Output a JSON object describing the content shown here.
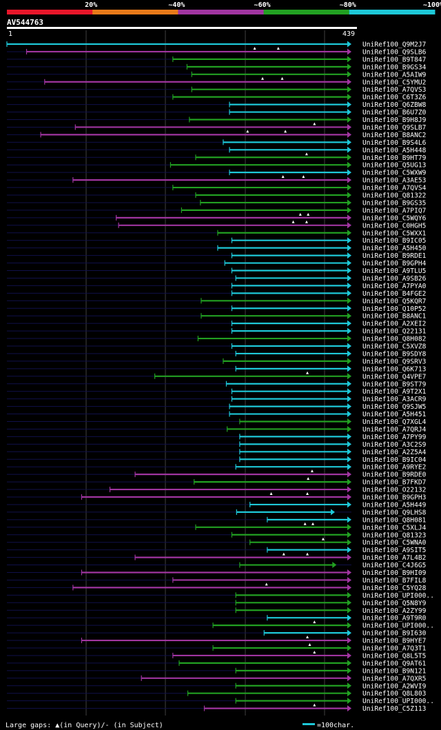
{
  "chart_data": {
    "type": "alignment-overview",
    "query_id": "AV544763",
    "query_length": 439,
    "axis_start_label": "1",
    "axis_end_label": "439",
    "identity_legend": [
      {
        "label": "20%",
        "color": "#e8162a"
      },
      {
        "label": "~40%",
        "color": "#e87a1a"
      },
      {
        "label": "~60%",
        "color": "#a035a0"
      },
      {
        "label": "~80%",
        "color": "#22a022"
      },
      {
        "label": "~100%",
        "color": "#1ec8d8"
      }
    ],
    "footer_left": "Large gaps: ▲(in Query)/- (in Subject)",
    "footer_right": "=100char.",
    "hits": [
      {
        "name": "UniRef100_Q9M2J7",
        "start": 1,
        "end": 439,
        "cls": 4,
        "marks": [],
        "arrow": true
      },
      {
        "name": "UniRef100_Q9SLB6",
        "start": 26,
        "end": 439,
        "cls": 2,
        "marks": [
          316,
          346
        ],
        "arrow": true
      },
      {
        "name": "UniRef100_B9T847",
        "start": 212,
        "end": 439,
        "cls": 3,
        "marks": [],
        "arrow": true
      },
      {
        "name": "UniRef100_B9GS34",
        "start": 230,
        "end": 439,
        "cls": 3,
        "marks": [],
        "arrow": true
      },
      {
        "name": "UniRef100_A5AIW9",
        "start": 236,
        "end": 439,
        "cls": 3,
        "marks": [],
        "arrow": true
      },
      {
        "name": "UniRef100_C5YMU2",
        "start": 49,
        "end": 439,
        "cls": 2,
        "marks": [
          326,
          351
        ],
        "arrow": true
      },
      {
        "name": "UniRef100_A7QVS3",
        "start": 236,
        "end": 439,
        "cls": 3,
        "marks": [],
        "arrow": true
      },
      {
        "name": "UniRef100_C6T3Z6",
        "start": 212,
        "end": 439,
        "cls": 3,
        "marks": [],
        "arrow": true
      },
      {
        "name": "UniRef100_Q6ZBW8",
        "start": 284,
        "end": 439,
        "cls": 4,
        "marks": [],
        "arrow": true
      },
      {
        "name": "UniRef100_B6U7Z0",
        "start": 284,
        "end": 439,
        "cls": 4,
        "marks": [],
        "arrow": true
      },
      {
        "name": "UniRef100_B9H8J9",
        "start": 233,
        "end": 439,
        "cls": 3,
        "marks": [],
        "arrow": true
      },
      {
        "name": "UniRef100_Q9SLB7",
        "start": 88,
        "end": 439,
        "cls": 2,
        "marks": [
          392
        ],
        "arrow": true
      },
      {
        "name": "UniRef100_B8ANC2",
        "start": 44,
        "end": 439,
        "cls": 2,
        "marks": [
          307,
          355
        ],
        "arrow": true
      },
      {
        "name": "UniRef100_B9S4L6",
        "start": 276,
        "end": 439,
        "cls": 4,
        "marks": [],
        "arrow": true
      },
      {
        "name": "UniRef100_A5H448",
        "start": 284,
        "end": 439,
        "cls": 4,
        "marks": [],
        "arrow": true
      },
      {
        "name": "UniRef100_B9HT79",
        "start": 241,
        "end": 439,
        "cls": 3,
        "marks": [
          382
        ],
        "arrow": true
      },
      {
        "name": "UniRef100_Q5UG13",
        "start": 209,
        "end": 439,
        "cls": 3,
        "marks": [],
        "arrow": true
      },
      {
        "name": "UniRef100_C5WXW9",
        "start": 284,
        "end": 439,
        "cls": 4,
        "marks": [],
        "arrow": true
      },
      {
        "name": "UniRef100_A3AE53",
        "start": 85,
        "end": 439,
        "cls": 2,
        "marks": [
          352,
          378
        ],
        "arrow": true
      },
      {
        "name": "UniRef100_A7QVS4",
        "start": 212,
        "end": 439,
        "cls": 3,
        "marks": [],
        "arrow": true
      },
      {
        "name": "UniRef100_Q81322",
        "start": 241,
        "end": 439,
        "cls": 3,
        "marks": [],
        "arrow": true
      },
      {
        "name": "UniRef100_B9GS35",
        "start": 247,
        "end": 439,
        "cls": 3,
        "marks": [],
        "arrow": true
      },
      {
        "name": "UniRef100_A7PIQ7",
        "start": 223,
        "end": 439,
        "cls": 3,
        "marks": [],
        "arrow": true
      },
      {
        "name": "UniRef100_C5WQY6",
        "start": 140,
        "end": 439,
        "cls": 2,
        "marks": [
          374,
          384
        ],
        "arrow": true
      },
      {
        "name": "UniRef100_C0HGH5",
        "start": 143,
        "end": 439,
        "cls": 2,
        "marks": [
          365,
          382
        ],
        "arrow": true
      },
      {
        "name": "UniRef100_C5WXX1",
        "start": 269,
        "end": 439,
        "cls": 3,
        "marks": [],
        "arrow": true
      },
      {
        "name": "UniRef100_B9IC05",
        "start": 287,
        "end": 439,
        "cls": 4,
        "marks": [],
        "arrow": true
      },
      {
        "name": "UniRef100_A5H450",
        "start": 269,
        "end": 439,
        "cls": 4,
        "marks": [],
        "arrow": true
      },
      {
        "name": "UniRef100_B9RDE1",
        "start": 287,
        "end": 439,
        "cls": 4,
        "marks": [],
        "arrow": true
      },
      {
        "name": "UniRef100_B9GPH4",
        "start": 278,
        "end": 439,
        "cls": 4,
        "marks": [],
        "arrow": true
      },
      {
        "name": "UniRef100_A9TLU5",
        "start": 287,
        "end": 439,
        "cls": 4,
        "marks": [],
        "arrow": true
      },
      {
        "name": "UniRef100_A9SB26",
        "start": 292,
        "end": 439,
        "cls": 4,
        "marks": [],
        "arrow": true
      },
      {
        "name": "UniRef100_A7PYA0",
        "start": 287,
        "end": 439,
        "cls": 4,
        "marks": [],
        "arrow": true
      },
      {
        "name": "UniRef100_B4FGE2",
        "start": 287,
        "end": 439,
        "cls": 4,
        "marks": [],
        "arrow": true
      },
      {
        "name": "UniRef100_Q5KQR7",
        "start": 248,
        "end": 439,
        "cls": 3,
        "marks": [],
        "arrow": true
      },
      {
        "name": "UniRef100_Q10P52",
        "start": 287,
        "end": 439,
        "cls": 4,
        "marks": [],
        "arrow": true
      },
      {
        "name": "UniRef100_B8ANC1",
        "start": 248,
        "end": 439,
        "cls": 3,
        "marks": [],
        "arrow": true
      },
      {
        "name": "UniRef100_A2XEI2",
        "start": 287,
        "end": 439,
        "cls": 4,
        "marks": [],
        "arrow": true
      },
      {
        "name": "UniRef100_Q22131",
        "start": 287,
        "end": 439,
        "cls": 4,
        "marks": [],
        "arrow": true
      },
      {
        "name": "UniRef100_Q8H082",
        "start": 244,
        "end": 439,
        "cls": 3,
        "marks": [],
        "arrow": true
      },
      {
        "name": "UniRef100_C5XVZ8",
        "start": 287,
        "end": 439,
        "cls": 4,
        "marks": [],
        "arrow": true
      },
      {
        "name": "UniRef100_B9SDY8",
        "start": 292,
        "end": 439,
        "cls": 4,
        "marks": [],
        "arrow": true
      },
      {
        "name": "UniRef100_Q9SRV3",
        "start": 276,
        "end": 439,
        "cls": 3,
        "marks": [],
        "arrow": true
      },
      {
        "name": "UniRef100_Q6K713",
        "start": 292,
        "end": 439,
        "cls": 4,
        "marks": [],
        "arrow": true
      },
      {
        "name": "UniRef100_Q4VPE7",
        "start": 189,
        "end": 439,
        "cls": 3,
        "marks": [
          383
        ],
        "arrow": true
      },
      {
        "name": "UniRef100_B9ST79",
        "start": 280,
        "end": 439,
        "cls": 4,
        "marks": [],
        "arrow": true
      },
      {
        "name": "UniRef100_A9T2X1",
        "start": 287,
        "end": 439,
        "cls": 4,
        "marks": [],
        "arrow": true
      },
      {
        "name": "UniRef100_A3ACR9",
        "start": 287,
        "end": 439,
        "cls": 4,
        "marks": [],
        "arrow": true
      },
      {
        "name": "UniRef100_Q9SJW5",
        "start": 284,
        "end": 439,
        "cls": 4,
        "marks": [],
        "arrow": true
      },
      {
        "name": "UniRef100_A5H451",
        "start": 284,
        "end": 439,
        "cls": 4,
        "marks": [],
        "arrow": true
      },
      {
        "name": "UniRef100_Q7XGL4",
        "start": 297,
        "end": 439,
        "cls": 3,
        "marks": [],
        "arrow": true
      },
      {
        "name": "UniRef100_A7QRJ4",
        "start": 281,
        "end": 439,
        "cls": 3,
        "marks": [],
        "arrow": true
      },
      {
        "name": "UniRef100_A7PY99",
        "start": 297,
        "end": 439,
        "cls": 4,
        "marks": [],
        "arrow": true
      },
      {
        "name": "UniRef100_A3C2S9",
        "start": 297,
        "end": 439,
        "cls": 4,
        "marks": [],
        "arrow": true
      },
      {
        "name": "UniRef100_A2Z5A4",
        "start": 297,
        "end": 439,
        "cls": 4,
        "marks": [],
        "arrow": true
      },
      {
        "name": "UniRef100_B9IC04",
        "start": 297,
        "end": 439,
        "cls": 4,
        "marks": [],
        "arrow": true
      },
      {
        "name": "UniRef100_A9RYE2",
        "start": 292,
        "end": 439,
        "cls": 4,
        "marks": [],
        "arrow": true
      },
      {
        "name": "UniRef100_B9RDE0",
        "start": 164,
        "end": 439,
        "cls": 2,
        "marks": [
          389
        ],
        "arrow": true
      },
      {
        "name": "UniRef100_B7FKD7",
        "start": 239,
        "end": 439,
        "cls": 3,
        "marks": [
          384
        ],
        "arrow": true
      },
      {
        "name": "UniRef100_O22132",
        "start": 132,
        "end": 439,
        "cls": 2,
        "marks": [],
        "arrow": true
      },
      {
        "name": "UniRef100_B9GPH3",
        "start": 96,
        "end": 439,
        "cls": 2,
        "marks": [
          337,
          383
        ],
        "arrow": true
      },
      {
        "name": "UniRef100_A5H449",
        "start": 310,
        "end": 439,
        "cls": 4,
        "marks": [],
        "arrow": true
      },
      {
        "name": "UniRef100_Q9LHS8",
        "start": 293,
        "end": 418,
        "cls": 4,
        "marks": [],
        "arrow": true
      },
      {
        "name": "UniRef100_Q8H081",
        "start": 332,
        "end": 439,
        "cls": 4,
        "marks": [],
        "arrow": true
      },
      {
        "name": "UniRef100_C5XLJ4",
        "start": 241,
        "end": 439,
        "cls": 3,
        "marks": [
          380,
          390
        ],
        "arrow": true
      },
      {
        "name": "UniRef100_Q81323",
        "start": 287,
        "end": 439,
        "cls": 3,
        "marks": [],
        "arrow": true
      },
      {
        "name": "UniRef100_C5WNA0",
        "start": 310,
        "end": 439,
        "cls": 3,
        "marks": [
          403
        ],
        "arrow": true
      },
      {
        "name": "UniRef100_A9SIT5",
        "start": 332,
        "end": 439,
        "cls": 4,
        "marks": [],
        "arrow": true
      },
      {
        "name": "UniRef100_A7L4B2",
        "start": 164,
        "end": 439,
        "cls": 2,
        "marks": [
          353,
          383
        ],
        "arrow": true
      },
      {
        "name": "UniRef100_C4J6G5",
        "start": 297,
        "end": 420,
        "cls": 3,
        "marks": [],
        "arrow": true
      },
      {
        "name": "UniRef100_B9HI09",
        "start": 96,
        "end": 439,
        "cls": 2,
        "marks": [],
        "arrow": true
      },
      {
        "name": "UniRef100_B7FIL8",
        "start": 212,
        "end": 439,
        "cls": 2,
        "marks": [],
        "arrow": true
      },
      {
        "name": "UniRef100_C5YQ28",
        "start": 85,
        "end": 439,
        "cls": 2,
        "marks": [
          331
        ],
        "arrow": true
      },
      {
        "name": "UniRef100_UPI000..",
        "start": 292,
        "end": 439,
        "cls": 3,
        "marks": [],
        "arrow": true
      },
      {
        "name": "UniRef100_Q5N8Y9",
        "start": 292,
        "end": 439,
        "cls": 3,
        "marks": [],
        "arrow": true
      },
      {
        "name": "UniRef100_A2ZY99",
        "start": 292,
        "end": 439,
        "cls": 3,
        "marks": [],
        "arrow": true
      },
      {
        "name": "UniRef100_A9T9R0",
        "start": 332,
        "end": 439,
        "cls": 4,
        "marks": [],
        "arrow": true
      },
      {
        "name": "UniRef100_UPI000..",
        "start": 263,
        "end": 439,
        "cls": 3,
        "marks": [
          392
        ],
        "arrow": true
      },
      {
        "name": "UniRef100_B9I630",
        "start": 328,
        "end": 439,
        "cls": 4,
        "marks": [],
        "arrow": true
      },
      {
        "name": "UniRef100_B9HYE7",
        "start": 96,
        "end": 439,
        "cls": 2,
        "marks": [
          383
        ],
        "arrow": true
      },
      {
        "name": "UniRef100_A7Q3T1",
        "start": 263,
        "end": 439,
        "cls": 3,
        "marks": [
          386
        ],
        "arrow": true
      },
      {
        "name": "UniRef100_Q8L5T5",
        "start": 212,
        "end": 439,
        "cls": 2,
        "marks": [
          392
        ],
        "arrow": true
      },
      {
        "name": "UniRef100_Q9AT61",
        "start": 220,
        "end": 439,
        "cls": 3,
        "marks": [],
        "arrow": true
      },
      {
        "name": "UniRef100_B9N121",
        "start": 292,
        "end": 439,
        "cls": 3,
        "marks": [],
        "arrow": true
      },
      {
        "name": "UniRef100_A7QXR5",
        "start": 172,
        "end": 439,
        "cls": 2,
        "marks": [],
        "arrow": true
      },
      {
        "name": "UniRef100_A2WVI9",
        "start": 292,
        "end": 439,
        "cls": 3,
        "marks": [],
        "arrow": true
      },
      {
        "name": "UniRef100_Q8L803",
        "start": 231,
        "end": 439,
        "cls": 3,
        "marks": [],
        "arrow": true
      },
      {
        "name": "UniRef100_UPI000..",
        "start": 292,
        "end": 439,
        "cls": 3,
        "marks": [],
        "arrow": true
      },
      {
        "name": "UniRef100_C5Z113",
        "start": 252,
        "end": 439,
        "cls": 2,
        "marks": [
          392
        ],
        "arrow": true
      }
    ]
  }
}
